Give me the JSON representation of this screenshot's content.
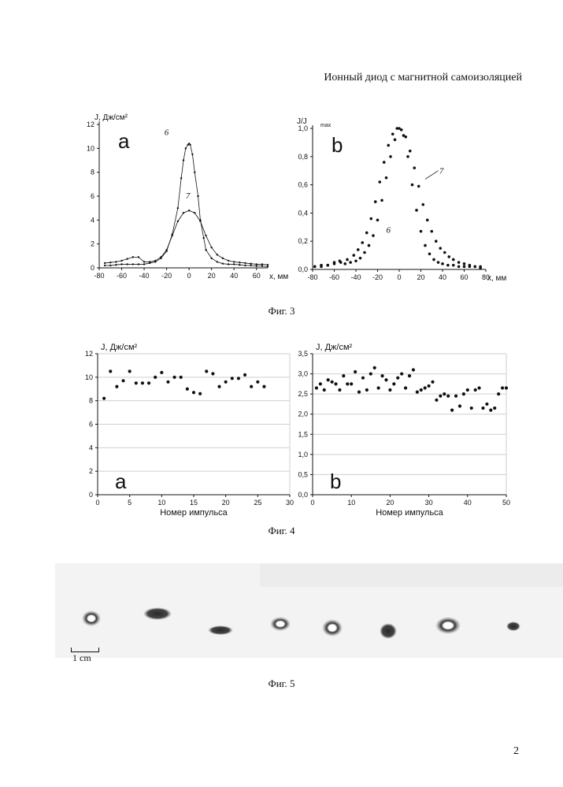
{
  "header": {
    "title": "Ионный диод с магнитной самоизоляцией"
  },
  "captions": {
    "fig3": "Фиг. 3",
    "fig4": "Фиг. 4",
    "fig5": "Фиг. 5"
  },
  "page_number": "2",
  "scale_label": "1 cm",
  "chart_data": [
    {
      "id": "fig3a",
      "type": "line",
      "panel_letter": "a",
      "ylabel": "J, Дж/см²",
      "xlabel": "x, мм",
      "xlim": [
        -80,
        70
      ],
      "ylim": [
        0,
        12
      ],
      "xticks": [
        -80,
        -60,
        -40,
        -20,
        0,
        20,
        40,
        60
      ],
      "yticks": [
        0,
        2,
        4,
        6,
        8,
        10,
        12
      ],
      "series": [
        {
          "name": "6",
          "x": [
            -75,
            -70,
            -65,
            -60,
            -55,
            -50,
            -45,
            -40,
            -35,
            -30,
            -25,
            -20,
            -15,
            -10,
            -7,
            -5,
            -3,
            -1,
            0,
            1,
            3,
            5,
            8,
            10,
            13,
            15,
            20,
            25,
            30,
            35,
            40,
            45,
            50,
            55,
            60,
            65,
            70
          ],
          "values": [
            0.2,
            0.2,
            0.25,
            0.3,
            0.3,
            0.3,
            0.3,
            0.3,
            0.4,
            0.5,
            0.8,
            1.4,
            2.8,
            5.0,
            7.5,
            9.0,
            10.0,
            10.3,
            10.4,
            10.3,
            9.5,
            8.0,
            6.0,
            4.0,
            2.5,
            1.5,
            0.8,
            0.5,
            0.35,
            0.3,
            0.3,
            0.25,
            0.2,
            0.2,
            0.15,
            0.15,
            0.1
          ]
        },
        {
          "name": "7",
          "x": [
            -75,
            -70,
            -65,
            -60,
            -55,
            -50,
            -45,
            -40,
            -35,
            -30,
            -25,
            -20,
            -15,
            -10,
            -5,
            0,
            5,
            10,
            15,
            20,
            25,
            30,
            35,
            40,
            45,
            50,
            55,
            60,
            65,
            70
          ],
          "values": [
            0.4,
            0.45,
            0.5,
            0.6,
            0.75,
            0.9,
            0.9,
            0.5,
            0.5,
            0.6,
            0.9,
            1.5,
            2.7,
            3.9,
            4.6,
            4.8,
            4.6,
            3.9,
            2.7,
            1.7,
            1.1,
            0.8,
            0.6,
            0.5,
            0.45,
            0.4,
            0.35,
            0.3,
            0.3,
            0.25
          ]
        }
      ]
    },
    {
      "id": "fig3b",
      "type": "scatter",
      "panel_letter": "b",
      "ylabel": "J/J",
      "ylabel_sub": "max",
      "xlabel": "x, мм",
      "xlim": [
        -80,
        80
      ],
      "ylim": [
        0,
        1.0
      ],
      "xticks": [
        -80,
        -60,
        -40,
        -20,
        0,
        20,
        40,
        60,
        80
      ],
      "ytick_labels": [
        "0,0",
        "0,2",
        "0,4",
        "0,6",
        "0,8",
        "1,0"
      ],
      "yticks": [
        0,
        0.2,
        0.4,
        0.6,
        0.8,
        1.0
      ],
      "series": [
        {
          "name": "6",
          "x": [
            -78,
            -72,
            -66,
            -60,
            -55,
            -50,
            -45,
            -40,
            -36,
            -32,
            -28,
            -24,
            -20,
            -16,
            -12,
            -8,
            -4,
            0,
            4,
            8,
            12,
            16,
            20,
            24,
            28,
            32,
            36,
            40,
            45,
            50,
            55,
            60,
            65,
            70,
            75
          ],
          "values": [
            0.02,
            0.03,
            0.03,
            0.05,
            0.06,
            0.04,
            0.05,
            0.06,
            0.08,
            0.12,
            0.17,
            0.24,
            0.35,
            0.49,
            0.65,
            0.8,
            0.92,
            1.0,
            0.95,
            0.8,
            0.6,
            0.42,
            0.27,
            0.17,
            0.11,
            0.07,
            0.05,
            0.04,
            0.03,
            0.03,
            0.02,
            0.02,
            0.02,
            0.02,
            0.01
          ]
        },
        {
          "name": "7",
          "x": [
            -78,
            -72,
            -66,
            -60,
            -54,
            -48,
            -42,
            -38,
            -34,
            -30,
            -26,
            -22,
            -18,
            -14,
            -10,
            -6,
            -2,
            2,
            6,
            10,
            14,
            18,
            22,
            26,
            30,
            34,
            38,
            42,
            46,
            50,
            55,
            60,
            65,
            70,
            75
          ],
          "values": [
            0.02,
            0.02,
            0.03,
            0.04,
            0.05,
            0.07,
            0.1,
            0.14,
            0.19,
            0.26,
            0.36,
            0.48,
            0.62,
            0.76,
            0.88,
            0.96,
            1.0,
            0.99,
            0.94,
            0.84,
            0.72,
            0.59,
            0.46,
            0.35,
            0.27,
            0.2,
            0.15,
            0.12,
            0.09,
            0.07,
            0.05,
            0.04,
            0.03,
            0.02,
            0.02
          ]
        }
      ]
    },
    {
      "id": "fig4a",
      "type": "scatter",
      "panel_letter": "a",
      "ylabel": "J, Дж/см²",
      "xlabel": "Номер импульса",
      "xlim": [
        0,
        30
      ],
      "ylim": [
        0,
        12
      ],
      "xticks": [
        0,
        5,
        10,
        15,
        20,
        25,
        30
      ],
      "yticks": [
        0,
        2,
        4,
        6,
        8,
        10,
        12
      ],
      "grid": true,
      "x": [
        1,
        2,
        3,
        4,
        5,
        6,
        7,
        8,
        9,
        10,
        11,
        12,
        13,
        14,
        15,
        16,
        17,
        18,
        19,
        20,
        21,
        22,
        23,
        24,
        25,
        26
      ],
      "values": [
        8.2,
        10.5,
        9.2,
        9.7,
        10.5,
        9.5,
        9.5,
        9.5,
        10.0,
        10.4,
        9.6,
        10.0,
        10.0,
        9.0,
        8.7,
        8.6,
        10.5,
        10.3,
        9.2,
        9.6,
        9.9,
        9.9,
        10.2,
        9.2,
        9.6,
        9.2
      ]
    },
    {
      "id": "fig4b",
      "type": "scatter",
      "panel_letter": "b",
      "ylabel": "J, Дж/см²",
      "xlabel": "Номер импульса",
      "xlim": [
        0,
        50
      ],
      "ylim": [
        0,
        3.5
      ],
      "xticks": [
        0,
        10,
        20,
        30,
        40,
        50
      ],
      "yticks": [
        0,
        0.5,
        1.0,
        1.5,
        2.0,
        2.5,
        3.0,
        3.5
      ],
      "ytick_labels": [
        "0,0",
        "0,5",
        "1,0",
        "1,5",
        "2,0",
        "2,5",
        "3,0",
        "3,5"
      ],
      "grid": true,
      "x": [
        1,
        2,
        3,
        4,
        5,
        6,
        7,
        8,
        9,
        10,
        11,
        12,
        13,
        14,
        15,
        16,
        17,
        18,
        19,
        20,
        21,
        22,
        23,
        24,
        25,
        26,
        27,
        28,
        29,
        30,
        31,
        32,
        33,
        34,
        35,
        36,
        37,
        38,
        39,
        40,
        41,
        42,
        43,
        44,
        45,
        46,
        47,
        48,
        49,
        50
      ],
      "values": [
        2.65,
        2.75,
        2.6,
        2.85,
        2.8,
        2.75,
        2.6,
        2.95,
        2.75,
        2.75,
        3.05,
        2.55,
        2.9,
        2.6,
        3.0,
        3.15,
        2.65,
        2.95,
        2.85,
        2.6,
        2.75,
        2.9,
        3.0,
        2.65,
        2.95,
        3.1,
        2.55,
        2.6,
        2.65,
        2.7,
        2.8,
        2.35,
        2.45,
        2.5,
        2.45,
        2.1,
        2.45,
        2.2,
        2.5,
        2.6,
        2.15,
        2.6,
        2.65,
        2.15,
        2.25,
        2.1,
        2.15,
        2.5,
        2.65,
        2.65
      ]
    }
  ],
  "ui": {
    "ink": "#111111",
    "grid": "#cfcfcf"
  }
}
